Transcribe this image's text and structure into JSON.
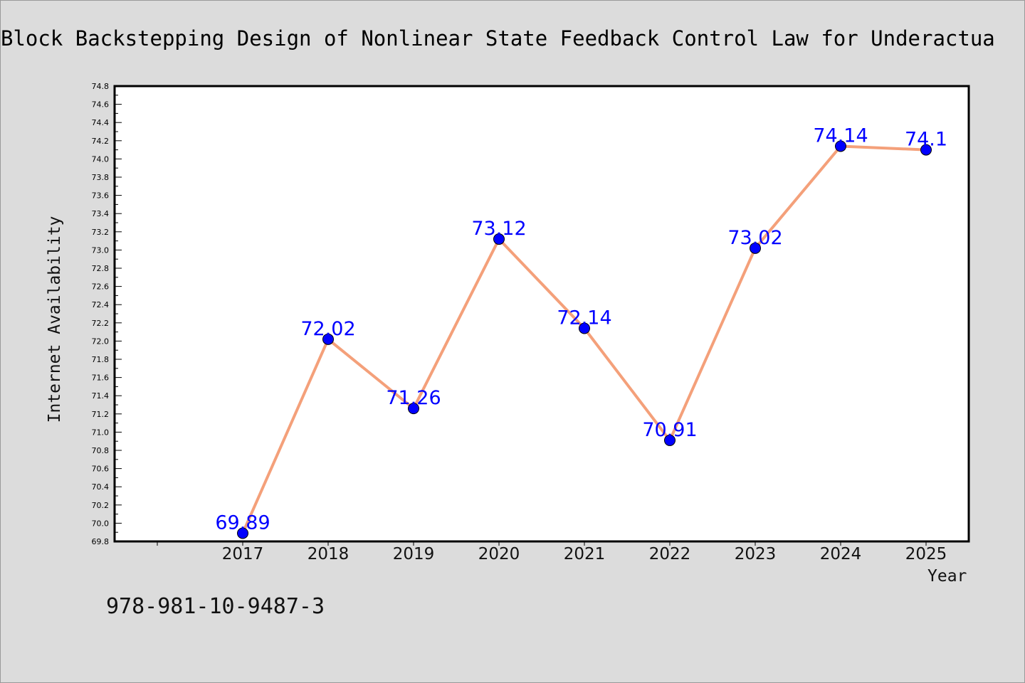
{
  "chart_data": {
    "type": "line",
    "title": "Block Backstepping Design of Nonlinear State Feedback Control Law for Underactua",
    "xlabel": "Year",
    "ylabel": "Internet Availability",
    "categories": [
      "2017",
      "2018",
      "2019",
      "2020",
      "2021",
      "2022",
      "2023",
      "2024",
      "2025"
    ],
    "series": [
      {
        "values": [
          69.89,
          72.02,
          71.26,
          73.12,
          72.14,
          70.91,
          73.02,
          74.14,
          74.1
        ],
        "labels": [
          "69.89",
          "72.02",
          "71.26",
          "73.12",
          "72.14",
          "70.91",
          "73.02",
          "74.14",
          "74.1"
        ],
        "line_color": "#f4a07a",
        "marker_color": "#0000ff"
      }
    ],
    "ylim": [
      69.8,
      74.8
    ],
    "yticks": [
      "69.8",
      "70.0",
      "70.2",
      "70.4",
      "70.6",
      "70.8",
      "71.0",
      "71.2",
      "71.4",
      "71.6",
      "71.8",
      "72.0",
      "72.2",
      "72.4",
      "72.6",
      "72.8",
      "73.0",
      "73.2",
      "73.4",
      "73.6",
      "73.8",
      "74.0",
      "74.2",
      "74.4",
      "74.6",
      "74.8"
    ],
    "grid": false,
    "legend": "none",
    "background": "#dcdcdc",
    "plot_background": "#ffffff",
    "label_color": "#0000ff"
  },
  "footer": {
    "isbn": "978-981-10-9487-3"
  }
}
